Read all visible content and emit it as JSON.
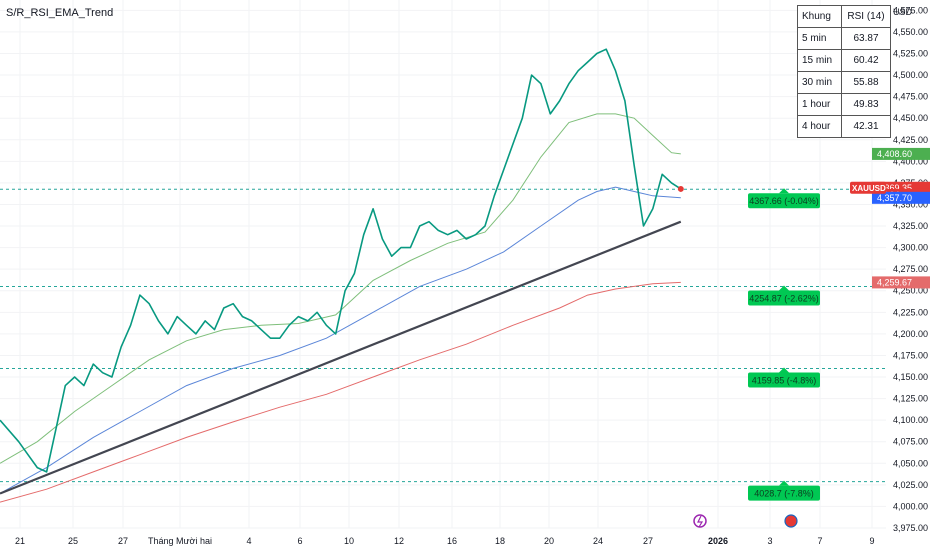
{
  "indicator_title": "S/R_RSI_EMA_Trend",
  "currency": "USD",
  "rsi_table": {
    "headers": [
      "Khung",
      "RSI (14)"
    ],
    "rows": [
      {
        "tf": "5 min",
        "rsi": "63.87"
      },
      {
        "tf": "15 min",
        "rsi": "60.42"
      },
      {
        "tf": "30 min",
        "rsi": "55.88"
      },
      {
        "tf": "1 hour",
        "rsi": "49.83"
      },
      {
        "tf": "4 hour",
        "rsi": "42.31"
      }
    ]
  },
  "chart_data": {
    "type": "line",
    "symbol": "XAUUSD",
    "ylim": [
      3975,
      4587
    ],
    "y_ticks": [
      3975,
      4000,
      4025,
      4050,
      4075,
      4100,
      4125,
      4150,
      4175,
      4200,
      4225,
      4250,
      4275,
      4300,
      4325,
      4350,
      4375,
      4400,
      4425,
      4450,
      4475,
      4500,
      4525,
      4550,
      4575
    ],
    "y_tick_labels": [
      "3,975.00",
      "4,000.00",
      "4,025.00",
      "4,050.00",
      "4,075.00",
      "4,100.00",
      "4,125.00",
      "4,150.00",
      "4,175.00",
      "4,200.00",
      "4,225.00",
      "4,250.00",
      "4,275.00",
      "4,300.00",
      "4,325.00",
      "4,350.00",
      "4,375.00",
      "4,400.00",
      "4,425.00",
      "4,450.00",
      "4,475.00",
      "4,500.00",
      "4,525.00",
      "4,550.00",
      "4,575.00"
    ],
    "x_ticks": [
      "21",
      "25",
      "27",
      "Tháng Mười hai",
      "4",
      "6",
      "10",
      "12",
      "16",
      "18",
      "20",
      "24",
      "27",
      "2026",
      "3",
      "7",
      "9"
    ],
    "x_tick_bold": "2026",
    "price_path": [
      [
        0,
        4100
      ],
      [
        4,
        4075
      ],
      [
        6,
        4060
      ],
      [
        8,
        4045
      ],
      [
        10,
        4040
      ],
      [
        12,
        4090
      ],
      [
        14,
        4140
      ],
      [
        16,
        4150
      ],
      [
        18,
        4140
      ],
      [
        20,
        4165
      ],
      [
        22,
        4155
      ],
      [
        24,
        4150
      ],
      [
        26,
        4185
      ],
      [
        28,
        4210
      ],
      [
        30,
        4245
      ],
      [
        32,
        4235
      ],
      [
        34,
        4215
      ],
      [
        36,
        4200
      ],
      [
        38,
        4220
      ],
      [
        40,
        4210
      ],
      [
        42,
        4200
      ],
      [
        44,
        4215
      ],
      [
        46,
        4205
      ],
      [
        48,
        4230
      ],
      [
        50,
        4235
      ],
      [
        52,
        4220
      ],
      [
        54,
        4215
      ],
      [
        56,
        4205
      ],
      [
        58,
        4195
      ],
      [
        60,
        4195
      ],
      [
        62,
        4210
      ],
      [
        64,
        4220
      ],
      [
        66,
        4215
      ],
      [
        68,
        4225
      ],
      [
        70,
        4210
      ],
      [
        72,
        4200
      ],
      [
        74,
        4250
      ],
      [
        76,
        4270
      ],
      [
        78,
        4315
      ],
      [
        80,
        4345
      ],
      [
        82,
        4310
      ],
      [
        84,
        4290
      ],
      [
        86,
        4300
      ],
      [
        88,
        4300
      ],
      [
        90,
        4325
      ],
      [
        92,
        4330
      ],
      [
        94,
        4320
      ],
      [
        96,
        4315
      ],
      [
        98,
        4320
      ],
      [
        100,
        4310
      ],
      [
        102,
        4315
      ],
      [
        104,
        4325
      ],
      [
        106,
        4360
      ],
      [
        108,
        4390
      ],
      [
        110,
        4420
      ],
      [
        112,
        4450
      ],
      [
        114,
        4500
      ],
      [
        116,
        4490
      ],
      [
        118,
        4455
      ],
      [
        120,
        4470
      ],
      [
        122,
        4490
      ],
      [
        124,
        4505
      ],
      [
        126,
        4515
      ],
      [
        128,
        4525
      ],
      [
        130,
        4530
      ],
      [
        132,
        4505
      ],
      [
        134,
        4470
      ],
      [
        136,
        4395
      ],
      [
        138,
        4325
      ],
      [
        140,
        4345
      ],
      [
        142,
        4385
      ],
      [
        144,
        4375
      ],
      [
        146,
        4368
      ]
    ],
    "series": [
      {
        "name": "",
        "color": "#7fbf7b",
        "values": [
          [
            0,
            4050
          ],
          [
            8,
            4075
          ],
          [
            16,
            4110
          ],
          [
            24,
            4140
          ],
          [
            32,
            4170
          ],
          [
            40,
            4192
          ],
          [
            48,
            4205
          ],
          [
            56,
            4210
          ],
          [
            64,
            4212
          ],
          [
            72,
            4222
          ],
          [
            80,
            4262
          ],
          [
            88,
            4285
          ],
          [
            96,
            4305
          ],
          [
            104,
            4318
          ],
          [
            110,
            4355
          ],
          [
            116,
            4405
          ],
          [
            122,
            4445
          ],
          [
            128,
            4455
          ],
          [
            132,
            4455
          ],
          [
            136,
            4450
          ],
          [
            140,
            4430
          ],
          [
            144,
            4410
          ],
          [
            146,
            4408.6
          ]
        ]
      },
      {
        "name": "",
        "color": "#5b86d8",
        "values": [
          [
            0,
            4015
          ],
          [
            10,
            4045
          ],
          [
            20,
            4080
          ],
          [
            30,
            4110
          ],
          [
            40,
            4140
          ],
          [
            50,
            4160
          ],
          [
            60,
            4175
          ],
          [
            70,
            4195
          ],
          [
            80,
            4225
          ],
          [
            90,
            4255
          ],
          [
            100,
            4275
          ],
          [
            108,
            4295
          ],
          [
            116,
            4325
          ],
          [
            124,
            4355
          ],
          [
            128,
            4365
          ],
          [
            132,
            4370
          ],
          [
            136,
            4365
          ],
          [
            140,
            4360
          ],
          [
            146,
            4357.7
          ]
        ]
      },
      {
        "name": "",
        "color": "#e46b6b",
        "values": [
          [
            0,
            4005
          ],
          [
            10,
            4020
          ],
          [
            20,
            4040
          ],
          [
            30,
            4060
          ],
          [
            40,
            4080
          ],
          [
            50,
            4098
          ],
          [
            60,
            4115
          ],
          [
            70,
            4130
          ],
          [
            80,
            4150
          ],
          [
            90,
            4170
          ],
          [
            100,
            4188
          ],
          [
            110,
            4210
          ],
          [
            120,
            4230
          ],
          [
            126,
            4245
          ],
          [
            132,
            4252
          ],
          [
            140,
            4258
          ],
          [
            146,
            4259.67
          ]
        ]
      }
    ],
    "trendline": [
      [
        0,
        4015
      ],
      [
        146,
        4330
      ]
    ],
    "support_levels": [
      {
        "value": 4367.66,
        "label": "4367.66 (-0.04%)"
      },
      {
        "value": 4254.87,
        "label": "4254.87 (-2.62%)"
      },
      {
        "value": 4159.85,
        "label": "4159.85 (-4.8%)"
      },
      {
        "value": 4028.7,
        "label": "4028.7 (-7.8%)"
      }
    ],
    "price_badges": [
      {
        "text": "4,408.60",
        "value": 4408.6,
        "color": "#4caf50"
      },
      {
        "text": "4,369.35",
        "value": 4369.35,
        "color": "#e53935"
      },
      {
        "text": "15:14",
        "value": 4361,
        "color": "#e53935"
      },
      {
        "text": "4,357.70",
        "value": 4357.7,
        "color": "#2962ff"
      },
      {
        "text": "4,259.67",
        "value": 4259.67,
        "color": "#e46b6b"
      }
    ],
    "last_price": 4369.35,
    "grid": true
  }
}
